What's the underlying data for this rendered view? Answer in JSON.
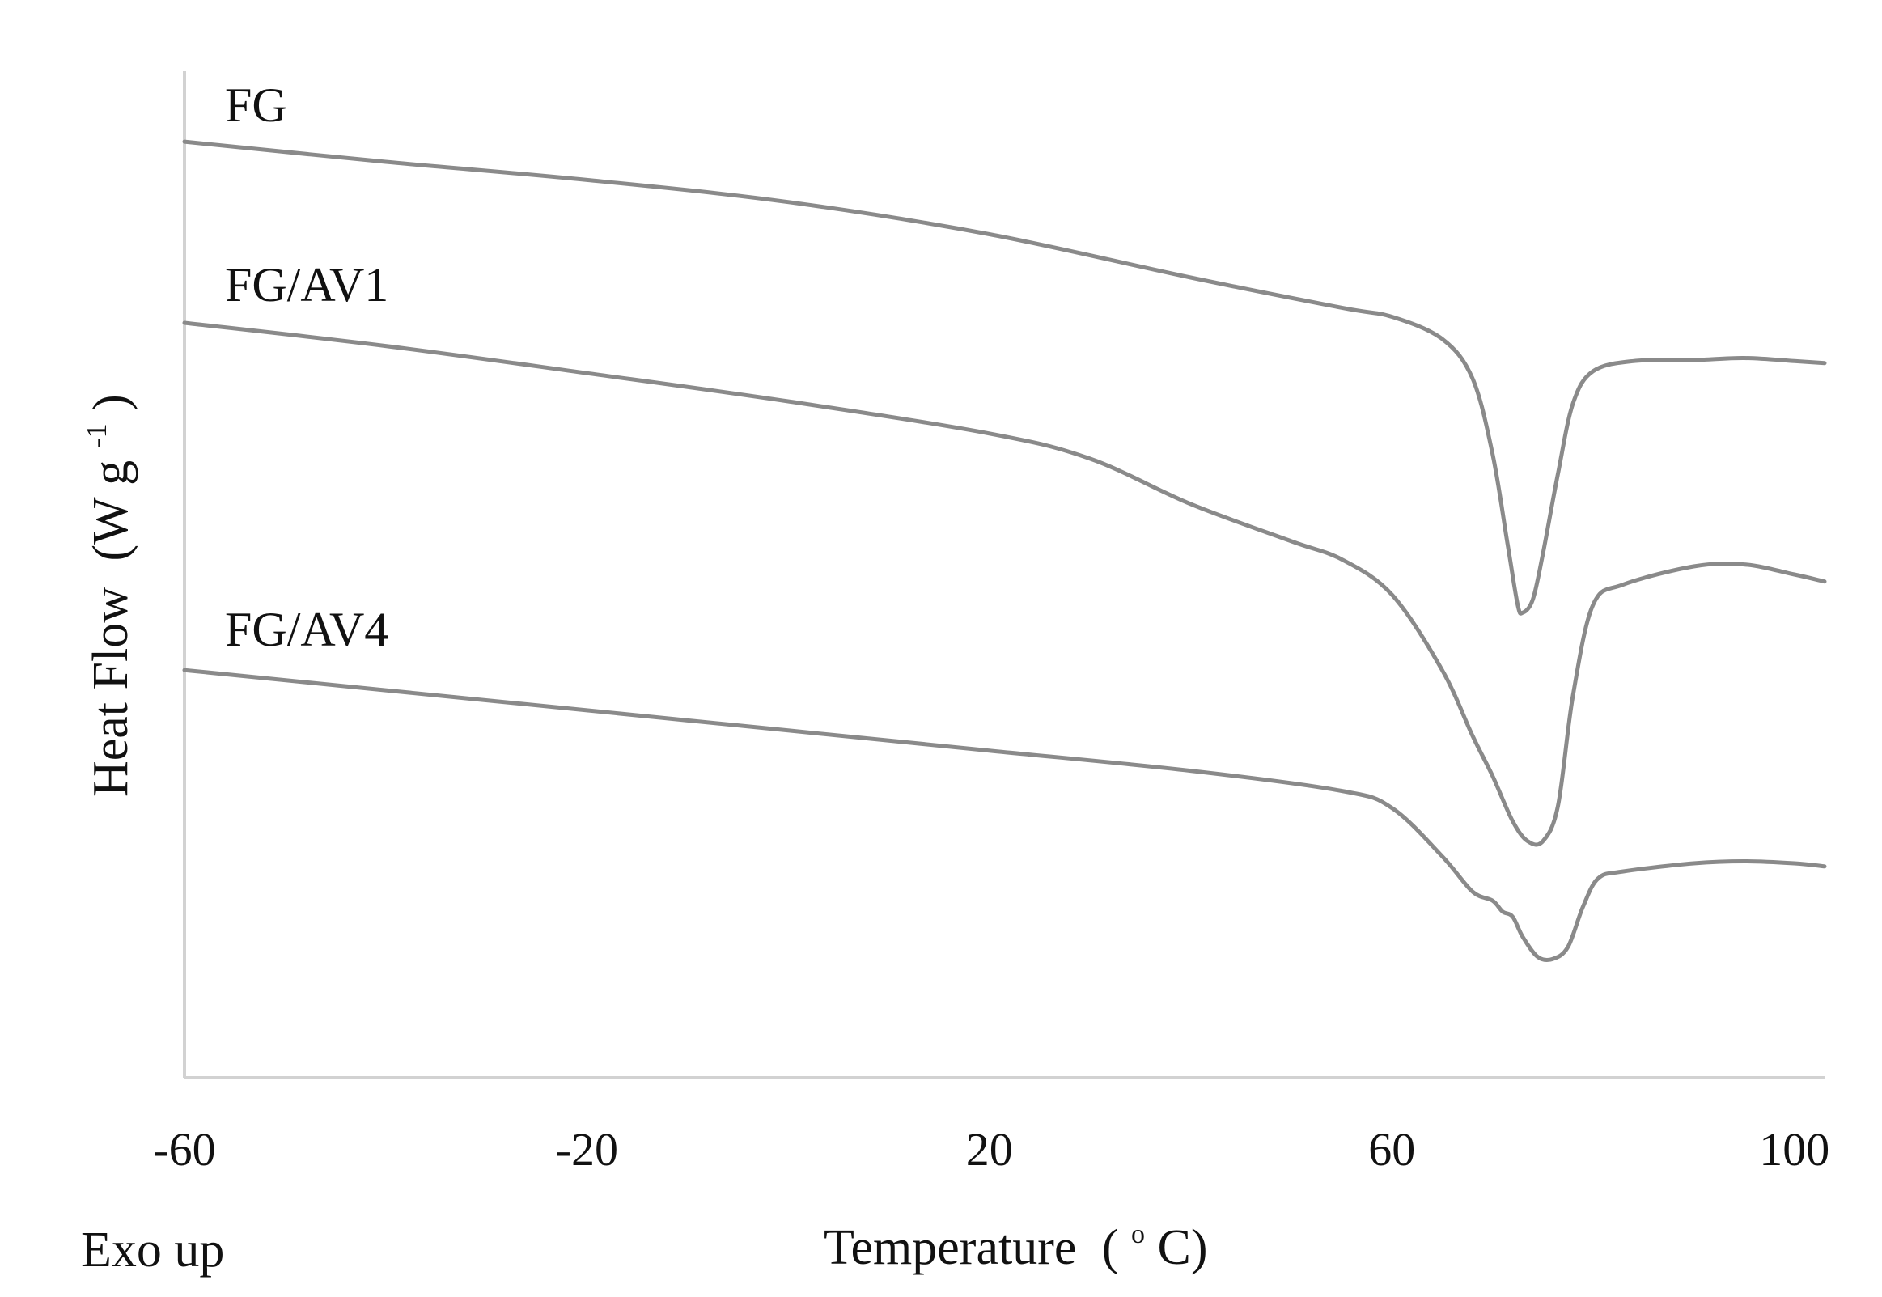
{
  "chart_data": {
    "type": "line",
    "title": "",
    "xlabel": "Temperature",
    "xlabel_unit": "(°C)",
    "xlabel_unit_open": "(",
    "xlabel_unit_degree": "o",
    "xlabel_unit_close": "C)",
    "ylabel": "Heat Flow",
    "ylabel_unit_main": "(W g",
    "ylabel_unit_exp": "-1",
    "ylabel_unit_close": ")",
    "annotation": "Exo up",
    "xlim": [
      -60,
      103
    ],
    "ylim": [
      0,
      100
    ],
    "x_ticks": [
      -60,
      -20,
      20,
      60,
      100
    ],
    "x_tick_labels": [
      "-60",
      "-20",
      "20",
      "60",
      "100"
    ],
    "y_ticks_shown": false,
    "grid": false,
    "legend": "inline labels",
    "series": [
      {
        "name": "FG",
        "color": "#8a8a8a",
        "points": [
          [
            -60,
            93.0
          ],
          [
            -40,
            91.0
          ],
          [
            -20,
            89.2
          ],
          [
            0,
            87.0
          ],
          [
            20,
            83.8
          ],
          [
            40,
            79.5
          ],
          [
            55,
            76.5
          ],
          [
            60,
            75.6
          ],
          [
            65,
            73.4
          ],
          [
            68,
            69.5
          ],
          [
            70,
            62.0
          ],
          [
            71.5,
            53.0
          ],
          [
            72.5,
            47.0
          ],
          [
            73,
            46.2
          ],
          [
            74,
            47.5
          ],
          [
            75,
            52.0
          ],
          [
            76.5,
            60.0
          ],
          [
            78,
            67.0
          ],
          [
            80,
            70.2
          ],
          [
            84,
            71.2
          ],
          [
            90,
            71.3
          ],
          [
            95,
            71.5
          ],
          [
            100,
            71.2
          ],
          [
            103,
            71.0
          ]
        ]
      },
      {
        "name": "FG/AV1",
        "color": "#8a8a8a",
        "points": [
          [
            -60,
            75.0
          ],
          [
            -40,
            72.7
          ],
          [
            -20,
            70.0
          ],
          [
            0,
            67.2
          ],
          [
            20,
            64.0
          ],
          [
            30,
            61.5
          ],
          [
            40,
            57.0
          ],
          [
            50,
            53.3
          ],
          [
            55,
            51.5
          ],
          [
            60,
            48.0
          ],
          [
            65,
            40.5
          ],
          [
            68,
            34.0
          ],
          [
            70,
            30.0
          ],
          [
            72,
            25.5
          ],
          [
            73.5,
            23.5
          ],
          [
            75,
            23.5
          ],
          [
            76.5,
            27.0
          ],
          [
            78,
            38.0
          ],
          [
            80,
            47.0
          ],
          [
            83,
            49.0
          ],
          [
            90,
            50.8
          ],
          [
            95,
            51.0
          ],
          [
            100,
            50.0
          ],
          [
            103,
            49.3
          ]
        ]
      },
      {
        "name": "FG/AV4",
        "color": "#8a8a8a",
        "points": [
          [
            -60,
            40.5
          ],
          [
            -40,
            38.5
          ],
          [
            -20,
            36.5
          ],
          [
            0,
            34.5
          ],
          [
            20,
            32.5
          ],
          [
            40,
            30.5
          ],
          [
            55,
            28.5
          ],
          [
            60,
            26.8
          ],
          [
            65,
            22.0
          ],
          [
            68,
            18.5
          ],
          [
            70,
            17.6
          ],
          [
            71,
            16.5
          ],
          [
            72,
            16.0
          ],
          [
            73,
            14.0
          ],
          [
            74.5,
            12.0
          ],
          [
            76,
            11.8
          ],
          [
            77.5,
            13.0
          ],
          [
            79,
            17.0
          ],
          [
            80.5,
            19.8
          ],
          [
            83,
            20.5
          ],
          [
            90,
            21.3
          ],
          [
            95,
            21.5
          ],
          [
            100,
            21.3
          ],
          [
            103,
            21.0
          ]
        ]
      }
    ]
  }
}
